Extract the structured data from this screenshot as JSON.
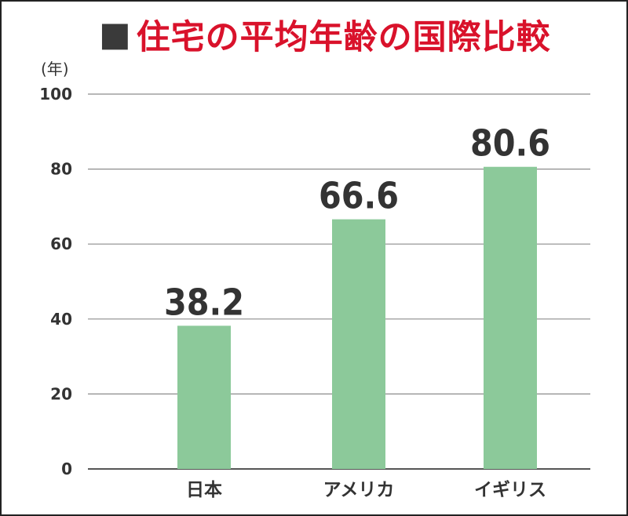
{
  "title": {
    "prefix": "■",
    "text": "住宅の平均年齢の国際比較"
  },
  "chart_data": {
    "type": "bar",
    "title": "■住宅の平均年齢の国際比較",
    "unit_label": "(年)",
    "categories": [
      "日本",
      "アメリカ",
      "イギリス"
    ],
    "values": [
      38.2,
      66.6,
      80.6
    ],
    "data_labels": [
      "38.2",
      "66.6",
      "80.6"
    ],
    "ylim": [
      0,
      100
    ],
    "yticks": [
      0,
      20,
      40,
      60,
      80,
      100
    ],
    "grid": true,
    "legend": "none",
    "colors": {
      "bar": "#8cc99a",
      "grid": "#8c8c8c",
      "axis": "#555555",
      "title": "#d9122b",
      "text": "#333333"
    }
  }
}
